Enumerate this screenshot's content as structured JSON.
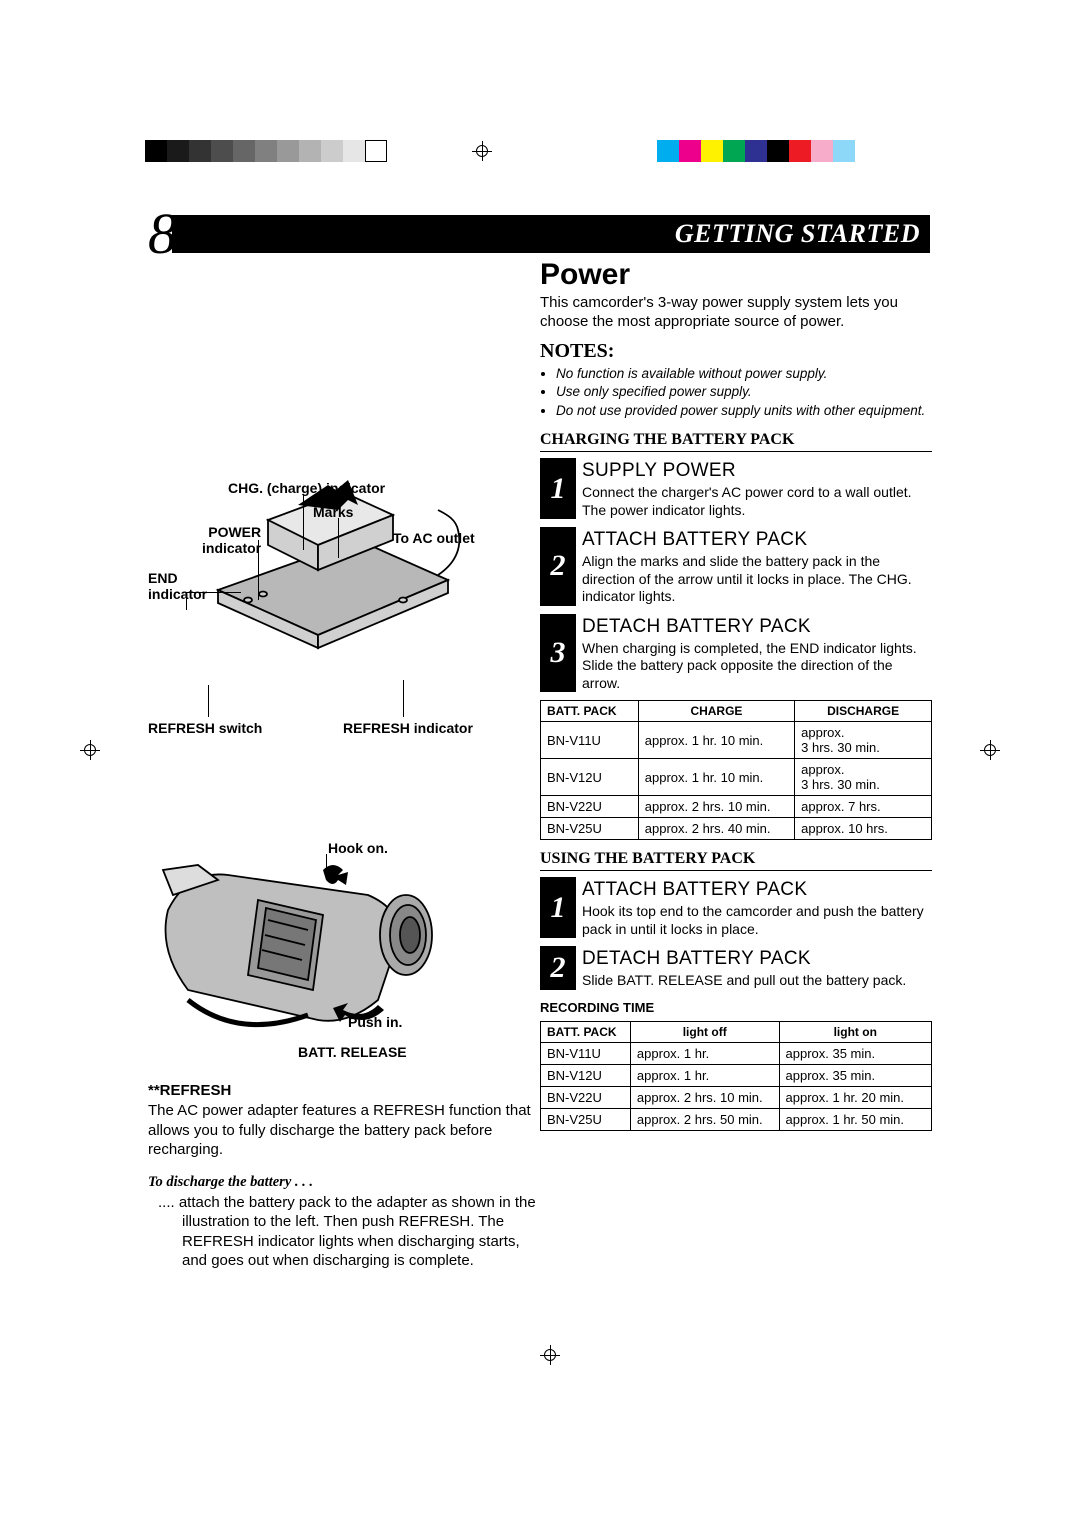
{
  "page_number": "8",
  "header": "GETTING STARTED",
  "title": "Power",
  "intro": "This camcorder's 3-way power supply system lets you choose the most appropriate source of power.",
  "notes_heading": "NOTES:",
  "notes": [
    "No function is available without power supply.",
    "Use only specified power supply.",
    "Do not use provided power supply units with other equipment."
  ],
  "charging": {
    "heading": "CHARGING THE BATTERY PACK",
    "steps": [
      {
        "n": "1",
        "title": "SUPPLY POWER",
        "text": "Connect the charger's AC power cord to a wall outlet. The power indicator lights."
      },
      {
        "n": "2",
        "title": "ATTACH BATTERY PACK",
        "text": "Align the marks and slide the battery pack in the direction of the arrow until it locks in place. The CHG. indicator lights."
      },
      {
        "n": "3",
        "title": "DETACH BATTERY PACK",
        "text": "When charging is completed, the END indicator lights. Slide the battery pack opposite the direction of the arrow."
      }
    ]
  },
  "table1": {
    "headers": [
      "BATT. PACK",
      "CHARGE",
      "DISCHARGE"
    ],
    "rows": [
      [
        "BN-V11U",
        "approx. 1 hr. 10 min.",
        "approx.\n3 hrs. 30 min."
      ],
      [
        "BN-V12U",
        "approx. 1 hr. 10 min.",
        "approx.\n3 hrs. 30 min."
      ],
      [
        "BN-V22U",
        "approx. 2 hrs. 10 min.",
        "approx. 7 hrs."
      ],
      [
        "BN-V25U",
        "approx. 2 hrs. 40 min.",
        "approx. 10 hrs."
      ]
    ],
    "col_widths": [
      "25%",
      "40%",
      "35%"
    ]
  },
  "using": {
    "heading": "USING THE BATTERY PACK",
    "steps": [
      {
        "n": "1",
        "title": "ATTACH BATTERY PACK",
        "text": "Hook its top end to the camcorder and push the battery pack in until it locks in place."
      },
      {
        "n": "2",
        "title": "DETACH BATTERY PACK",
        "text": "Slide BATT. RELEASE and pull out the battery pack."
      }
    ]
  },
  "rec_caption": "RECORDING TIME",
  "table2": {
    "headers": [
      "BATT. PACK",
      "light off",
      "light on"
    ],
    "rows": [
      [
        "BN-V11U",
        "approx. 1 hr.",
        "approx. 35 min."
      ],
      [
        "BN-V12U",
        "approx. 1 hr.",
        "approx. 35 min."
      ],
      [
        "BN-V22U",
        "approx. 2 hrs. 10 min.",
        "approx. 1 hr. 20 min."
      ],
      [
        "BN-V25U",
        "approx. 2 hrs. 50 min.",
        "approx. 1 hr. 50 min."
      ]
    ],
    "col_widths": [
      "23%",
      "38%",
      "39%"
    ]
  },
  "diagram1": {
    "labels": {
      "chg": "CHG. (charge) indicator",
      "marks": "Marks",
      "power": "POWER\nindicator",
      "ac": "To AC outlet",
      "end": "END\nindicator",
      "refresh_sw": "REFRESH switch",
      "refresh_ind": "REFRESH indicator"
    }
  },
  "diagram2": {
    "labels": {
      "hook": "Hook on.",
      "push": "Push in.",
      "release": "BATT. RELEASE"
    }
  },
  "refresh": {
    "heading": "**REFRESH",
    "text": "The AC power adapter features a REFRESH function that allows you to fully discharge the battery pack before recharging.",
    "discharge_heading": "To discharge the battery . . .",
    "discharge_text": ".... attach the battery pack to the adapter as shown in the illustration to the left. Then push REFRESH. The REFRESH indicator lights when discharging starts, and goes out when discharging is complete."
  },
  "regbar_grays": [
    "#000000",
    "#1a1a1a",
    "#333333",
    "#4d4d4d",
    "#666666",
    "#808080",
    "#999999",
    "#b3b3b3",
    "#cccccc",
    "#e6e6e6",
    "#ffffff"
  ],
  "regbar_colors": [
    "#00aeef",
    "#ec008c",
    "#fff200",
    "#00a651",
    "#2e3192",
    "#000000",
    "#ed1c24",
    "#f7adc9",
    "#8dd8f8"
  ]
}
